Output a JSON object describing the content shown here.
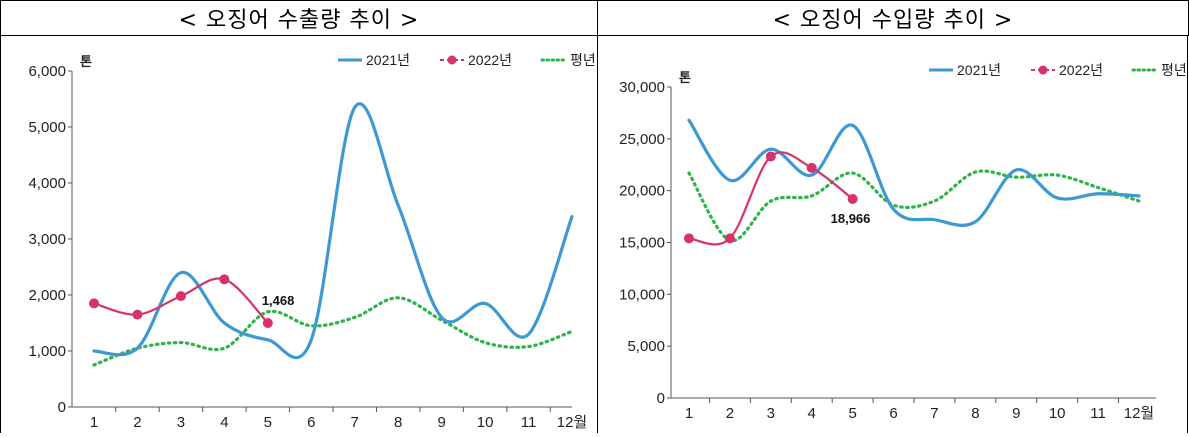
{
  "panels": {
    "left_title": "< 오징어 수출량 추이 >",
    "right_title": "< 오징어 수입량 추이 >"
  },
  "chart_data": [
    {
      "type": "line",
      "title": "< 오징어 수출량 추이 >",
      "ylabel": "톤",
      "x_tick_labels": [
        "1",
        "2",
        "3",
        "4",
        "5",
        "6",
        "7",
        "8",
        "9",
        "10",
        "11",
        "12월"
      ],
      "x": [
        1,
        2,
        3,
        4,
        5,
        6,
        7,
        8,
        9,
        10,
        11,
        12
      ],
      "ylim": [
        0,
        6000
      ],
      "yticks": [
        0,
        1000,
        2000,
        3000,
        4000,
        5000,
        6000
      ],
      "ytick_labels": [
        "0",
        "1,000",
        "2,000",
        "3,000",
        "4,000",
        "5,000",
        "6,000"
      ],
      "grid": false,
      "legend_position": "top-right",
      "series": [
        {
          "name": "2021년",
          "color": "#3d9ad1",
          "style": "solid",
          "x": [
            1,
            2,
            3,
            4,
            5,
            6,
            7,
            8,
            9,
            10,
            11,
            12
          ],
          "values": [
            1000,
            1050,
            2400,
            1500,
            1200,
            1200,
            5350,
            3600,
            1600,
            1850,
            1300,
            3400
          ]
        },
        {
          "name": "2022년",
          "color": "#d6336c",
          "style": "marker",
          "x": [
            1,
            2,
            3,
            4,
            5
          ],
          "values": [
            1850,
            1650,
            1980,
            2280,
            1500
          ]
        },
        {
          "name": "평년",
          "color": "#2db34a",
          "style": "dotted",
          "x": [
            1,
            2,
            3,
            4,
            5,
            6,
            7,
            8,
            9,
            10,
            11,
            12
          ],
          "values": [
            750,
            1050,
            1150,
            1050,
            1700,
            1450,
            1600,
            1950,
            1550,
            1150,
            1080,
            1350
          ]
        }
      ],
      "annotations": [
        {
          "text": "1,468",
          "series": "2022년",
          "x": 5
        }
      ]
    },
    {
      "type": "line",
      "title": "< 오징어 수입량 추이 >",
      "ylabel": "톤",
      "x_tick_labels": [
        "1",
        "2",
        "3",
        "4",
        "5",
        "6",
        "7",
        "8",
        "9",
        "10",
        "11",
        "12월"
      ],
      "x": [
        1,
        2,
        3,
        4,
        5,
        6,
        7,
        8,
        9,
        10,
        11,
        12
      ],
      "ylim": [
        0,
        30000
      ],
      "yticks": [
        0,
        5000,
        10000,
        15000,
        20000,
        25000,
        30000
      ],
      "ytick_labels": [
        "0",
        "5,000",
        "10,000",
        "15,000",
        "20,000",
        "25,000",
        "30,000"
      ],
      "grid": false,
      "legend_position": "top-right",
      "series": [
        {
          "name": "2021년",
          "color": "#3d9ad1",
          "style": "solid",
          "x": [
            1,
            2,
            3,
            4,
            5,
            6,
            7,
            8,
            9,
            10,
            11,
            12
          ],
          "values": [
            26800,
            21000,
            24000,
            21500,
            26300,
            18200,
            17200,
            17000,
            22000,
            19300,
            19700,
            19500
          ]
        },
        {
          "name": "2022년",
          "color": "#d6336c",
          "style": "marker",
          "x": [
            1,
            2,
            3,
            4,
            5
          ],
          "values": [
            15400,
            15400,
            23300,
            22200,
            19200
          ]
        },
        {
          "name": "평년",
          "color": "#2db34a",
          "style": "dotted",
          "x": [
            1,
            2,
            3,
            4,
            5,
            6,
            7,
            8,
            9,
            10,
            11,
            12
          ],
          "values": [
            21700,
            15200,
            19000,
            19500,
            21700,
            18600,
            19000,
            21800,
            21300,
            21500,
            20300,
            19000
          ]
        }
      ],
      "annotations": [
        {
          "text": "18,966",
          "series": "2022년",
          "x": 5
        }
      ]
    }
  ]
}
